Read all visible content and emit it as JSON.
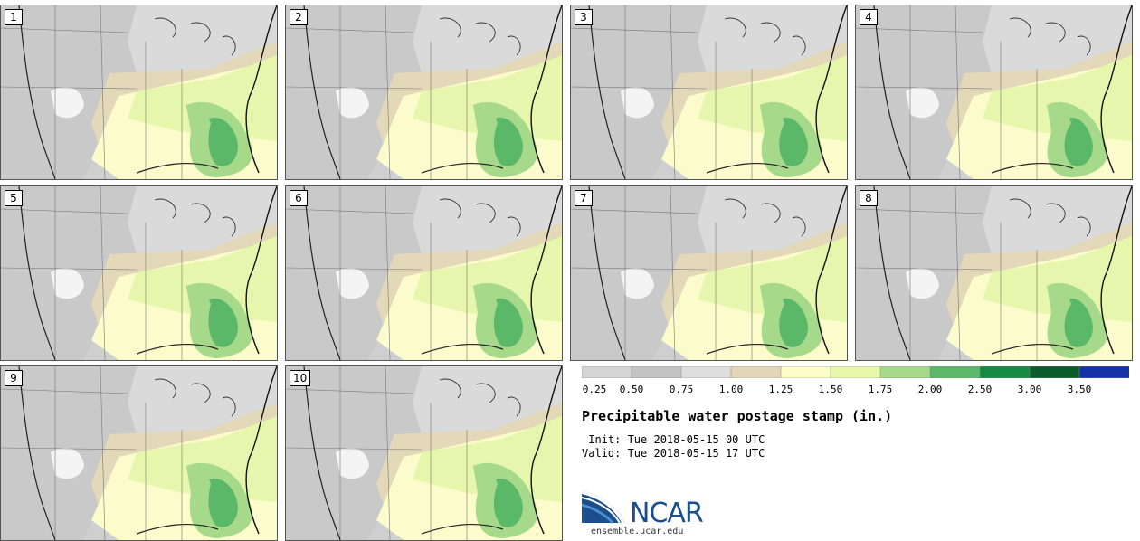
{
  "panels": [
    {
      "label": "1"
    },
    {
      "label": "2"
    },
    {
      "label": "3"
    },
    {
      "label": "4"
    },
    {
      "label": "5"
    },
    {
      "label": "6"
    },
    {
      "label": "7"
    },
    {
      "label": "8"
    },
    {
      "label": "9"
    },
    {
      "label": "10"
    }
  ],
  "colorbar": {
    "colors": [
      "#d4d4d4",
      "#c2c2c2",
      "#dedede",
      "#e2d6b6",
      "#fdfdc8",
      "#e7f9a9",
      "#a6d98a",
      "#5cb869",
      "#168a3e",
      "#0b5b2d",
      "#1532a6"
    ],
    "labels": [
      "0.25",
      "0.50",
      "0.75",
      "1.00",
      "1.25",
      "1.50",
      "1.75",
      "2.00",
      "2.50",
      "3.00",
      "3.50"
    ]
  },
  "title": "Precipitable water postage stamp (in.)",
  "init_line": " Init: Tue 2018-05-15 00 UTC",
  "valid_line": "Valid: Tue 2018-05-15 17 UTC",
  "logo": {
    "text": "NCAR",
    "url": "ensemble.ucar.edu"
  },
  "colors": {
    "logo_blue": "#1a4e8c",
    "logo_light": "#4a8fd0"
  }
}
